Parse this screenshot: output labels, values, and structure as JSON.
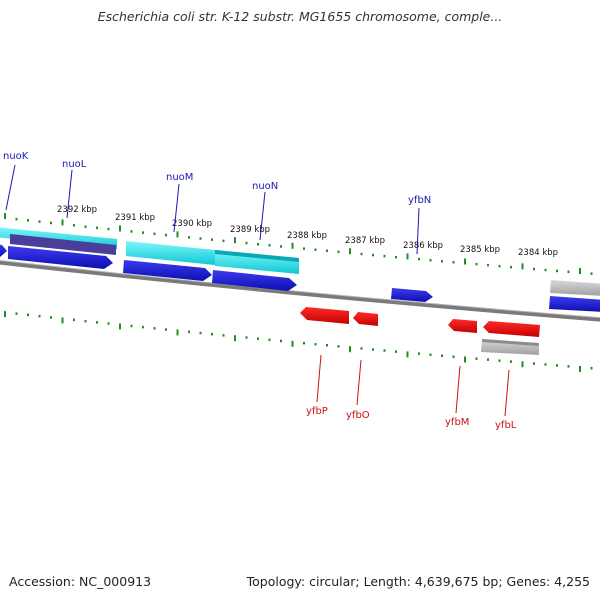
{
  "header": {
    "title": "Escherichia coli str. K-12 substr. MG1655 chromosome, comple..."
  },
  "footer": {
    "accession": "Accession: NC_000913",
    "summary": "Topology: circular; Length: 4,639,675 bp; Genes: 4,255"
  },
  "scale": {
    "labels": [
      "2392 kbp",
      "2391 kbp",
      "2390 kbp",
      "2389 kbp",
      "2388 kbp",
      "2387 kbp",
      "2386 kbp",
      "2385 kbp",
      "2384 kbp"
    ]
  },
  "genes_top": [
    "nuoK",
    "nuoL",
    "nuoM",
    "nuoN",
    "yfbN"
  ],
  "genes_bottom": [
    "yfbP",
    "yfbO",
    "yfbM",
    "yfbL"
  ],
  "colors": {
    "forward_cds": "#1414d8",
    "reverse_cds": "#e00000",
    "cyan_feature": "#17e0ea",
    "grey_feature": "#b8b8b8",
    "purple_feature": "#5a4aa0",
    "backbone": "#7a7a7a",
    "ticks": "#1f8f1f"
  }
}
